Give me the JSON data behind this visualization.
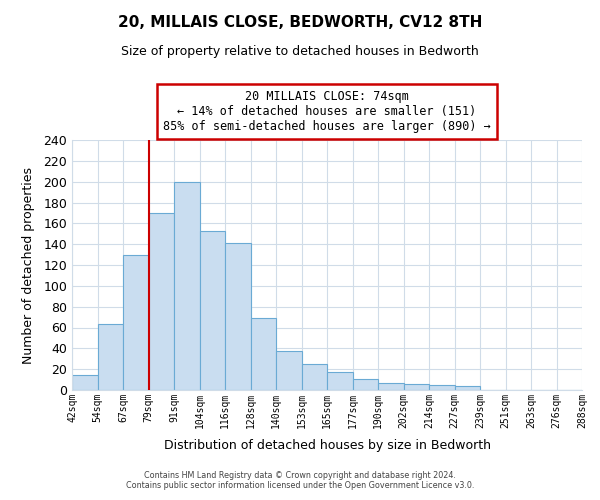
{
  "title": "20, MILLAIS CLOSE, BEDWORTH, CV12 8TH",
  "subtitle": "Size of property relative to detached houses in Bedworth",
  "xlabel": "Distribution of detached houses by size in Bedworth",
  "ylabel": "Number of detached properties",
  "bin_labels": [
    "42sqm",
    "54sqm",
    "67sqm",
    "79sqm",
    "91sqm",
    "104sqm",
    "116sqm",
    "128sqm",
    "140sqm",
    "153sqm",
    "165sqm",
    "177sqm",
    "190sqm",
    "202sqm",
    "214sqm",
    "227sqm",
    "239sqm",
    "251sqm",
    "263sqm",
    "276sqm",
    "288sqm"
  ],
  "bar_heights": [
    14,
    63,
    130,
    170,
    200,
    153,
    141,
    69,
    37,
    25,
    17,
    11,
    7,
    6,
    5,
    4,
    0,
    0,
    0,
    0
  ],
  "bar_color": "#c9ddf0",
  "bar_edge_color": "#6aaad4",
  "grid_color": "#d0dce8",
  "vline_x": 3.0,
  "annotation_title": "20 MILLAIS CLOSE: 74sqm",
  "annotation_line1": "← 14% of detached houses are smaller (151)",
  "annotation_line2": "85% of semi-detached houses are larger (890) →",
  "annotation_box_color": "#ffffff",
  "annotation_box_edge_color": "#cc0000",
  "vline_color": "#cc0000",
  "ylim": [
    0,
    240
  ],
  "yticks": [
    0,
    20,
    40,
    60,
    80,
    100,
    120,
    140,
    160,
    180,
    200,
    220,
    240
  ],
  "footer1": "Contains HM Land Registry data © Crown copyright and database right 2024.",
  "footer2": "Contains public sector information licensed under the Open Government Licence v3.0."
}
